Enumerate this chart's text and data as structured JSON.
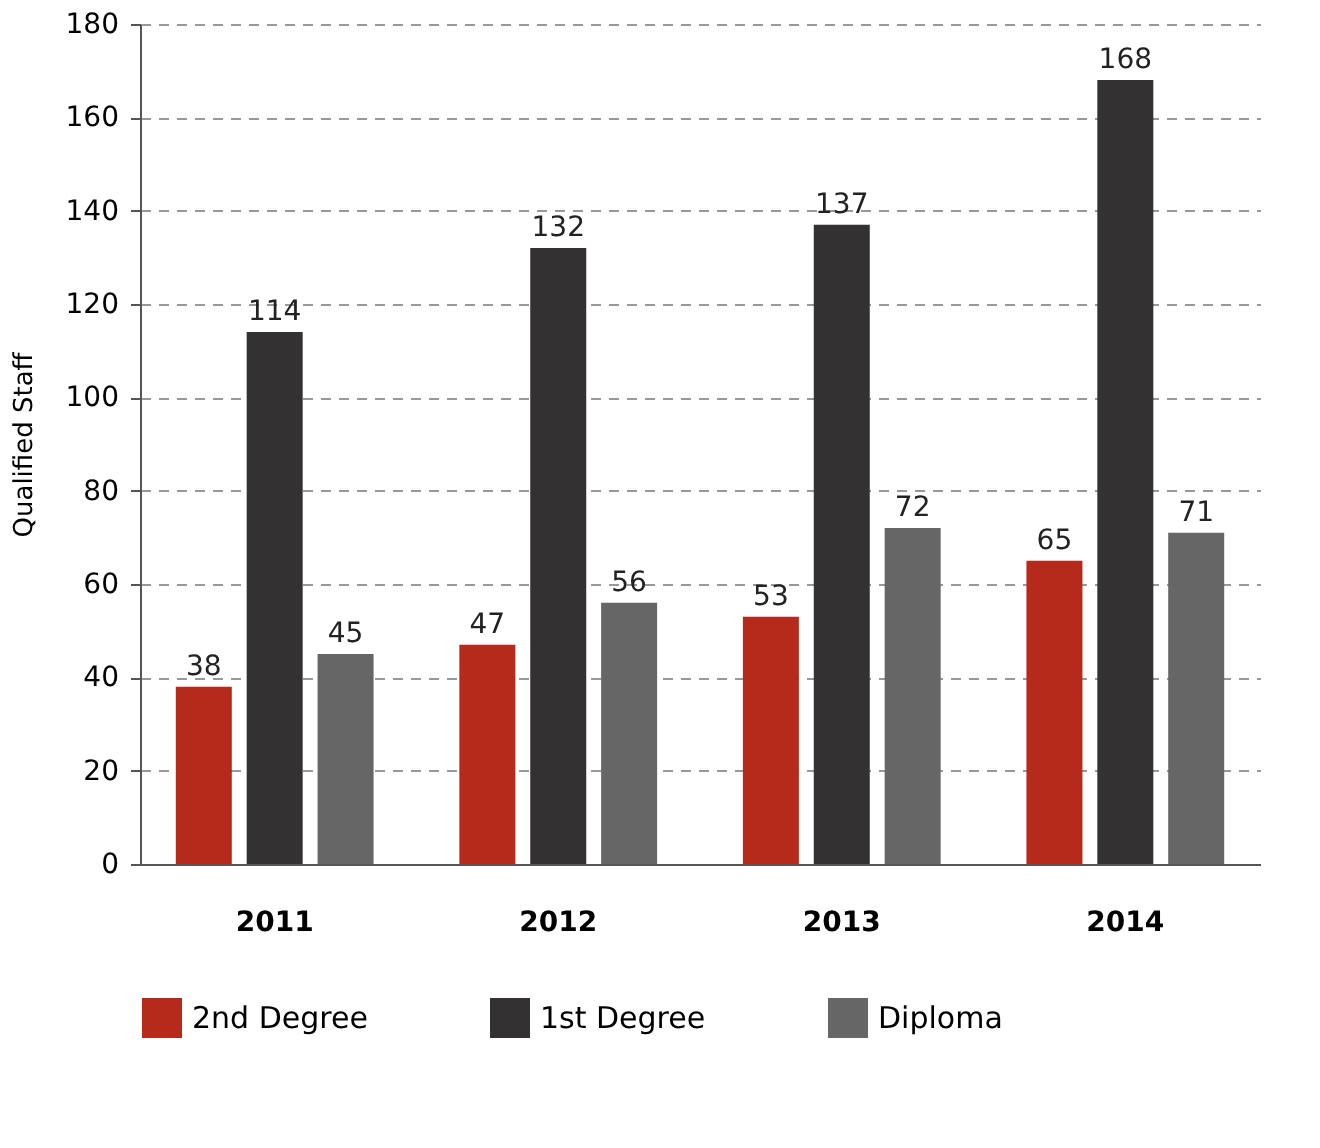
{
  "chart_data": {
    "type": "bar",
    "ylabel": "Qualified Staff",
    "categories": [
      "2011",
      "2012",
      "2013",
      "2014"
    ],
    "series": [
      {
        "name": "2nd Degree",
        "color": "#b52a1a",
        "values": [
          38,
          47,
          53,
          65
        ]
      },
      {
        "name": "1st Degree",
        "color": "#333132",
        "values": [
          114,
          132,
          137,
          168
        ]
      },
      {
        "name": "Diploma",
        "color": "#666667",
        "values": [
          45,
          56,
          72,
          71
        ]
      }
    ],
    "ylim": [
      0,
      180
    ],
    "yticks": [
      0,
      20,
      40,
      60,
      80,
      100,
      120,
      140,
      160,
      180
    ],
    "grid": "y",
    "legend": "bottom",
    "data_labels": true
  }
}
